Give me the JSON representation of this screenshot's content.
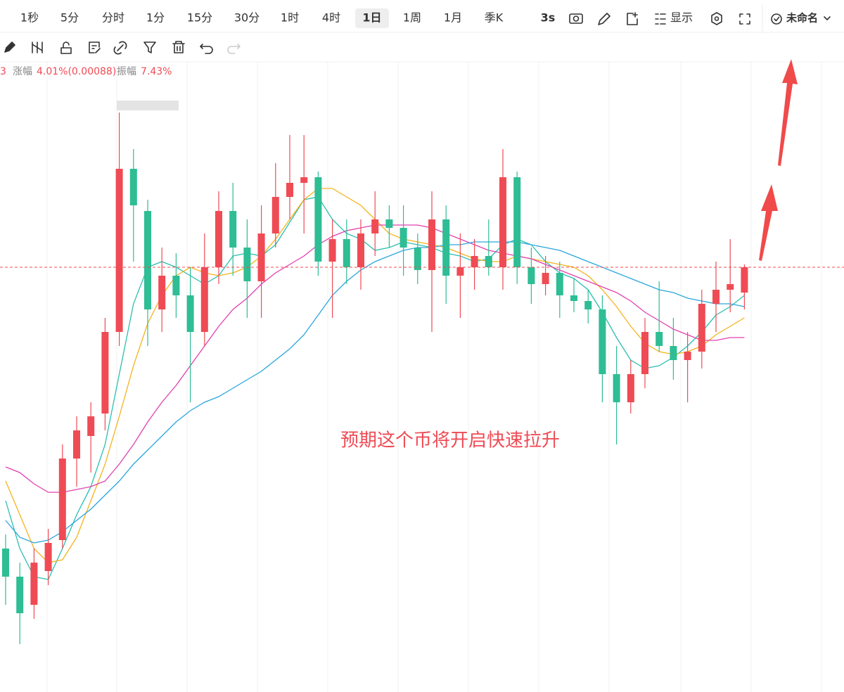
{
  "toolbar": {
    "intervals": [
      "1秒",
      "5分",
      "分时",
      "1分",
      "15分",
      "30分",
      "1时",
      "4时",
      "1日",
      "1周",
      "1月",
      "季K"
    ],
    "selected": 8,
    "refresh": "3s",
    "display": "显示",
    "layout_name": "未命名"
  },
  "info": {
    "prefix": "3",
    "change_label": "涨幅",
    "change": "4.01%(0.00088)",
    "amplitude_label": "振幅",
    "amplitude": "7.43%"
  },
  "chart_data": {
    "type": "candlestick",
    "annotation": "预期这个币将开启快速拉升",
    "up_color": "#ef4b55",
    "down_color": "#2ebd94",
    "ylim": [
      0.0077,
      0.0301
    ],
    "open": [
      0.0128,
      0.0118,
      0.0108,
      0.012,
      0.0131,
      0.016,
      0.0168,
      0.0176,
      0.0205,
      0.0263,
      0.0248,
      0.0213,
      0.0225,
      0.0218,
      0.0205,
      0.0228,
      0.0248,
      0.0235,
      0.0223,
      0.024,
      0.0253,
      0.0258,
      0.026,
      0.023,
      0.0238,
      0.0228,
      0.024,
      0.0245,
      0.0242,
      0.0235,
      0.0227,
      0.0245,
      0.0225,
      0.0228,
      0.0232,
      0.0228,
      0.026,
      0.0228,
      0.0222,
      0.0226,
      0.0218,
      0.0216,
      0.0213,
      0.019,
      0.018,
      0.019,
      0.0205,
      0.02,
      0.0195,
      0.0198,
      0.0215,
      0.022,
      0.0219
    ],
    "high": [
      0.0133,
      0.0123,
      0.0128,
      0.0135,
      0.0165,
      0.0175,
      0.018,
      0.021,
      0.0283,
      0.027,
      0.0252,
      0.0235,
      0.0233,
      0.0228,
      0.024,
      0.0255,
      0.0258,
      0.0245,
      0.025,
      0.0265,
      0.0275,
      0.0275,
      0.0262,
      0.0245,
      0.0245,
      0.0245,
      0.0255,
      0.025,
      0.025,
      0.024,
      0.0255,
      0.025,
      0.024,
      0.0238,
      0.0245,
      0.027,
      0.0262,
      0.0235,
      0.0232,
      0.023,
      0.0224,
      0.022,
      0.0218,
      0.02,
      0.0195,
      0.021,
      0.0223,
      0.021,
      0.0205,
      0.022,
      0.023,
      0.0238,
      0.0229
    ],
    "low": [
      0.0108,
      0.0094,
      0.0103,
      0.0115,
      0.0128,
      0.015,
      0.0155,
      0.017,
      0.02,
      0.023,
      0.02,
      0.0205,
      0.021,
      0.018,
      0.02,
      0.0222,
      0.0225,
      0.021,
      0.021,
      0.0235,
      0.0245,
      0.024,
      0.0225,
      0.021,
      0.0222,
      0.022,
      0.0232,
      0.0235,
      0.0225,
      0.0222,
      0.0205,
      0.0215,
      0.021,
      0.022,
      0.0225,
      0.022,
      0.0222,
      0.0215,
      0.0218,
      0.021,
      0.0212,
      0.0208,
      0.018,
      0.0165,
      0.0176,
      0.0185,
      0.0198,
      0.0188,
      0.018,
      0.0192,
      0.0205,
      0.0212,
      0.0213
    ],
    "close": [
      0.0118,
      0.0105,
      0.0123,
      0.013,
      0.016,
      0.017,
      0.0175,
      0.0205,
      0.0263,
      0.025,
      0.0213,
      0.0225,
      0.0218,
      0.0205,
      0.0228,
      0.0248,
      0.0235,
      0.0223,
      0.024,
      0.0253,
      0.0258,
      0.026,
      0.023,
      0.0238,
      0.0228,
      0.024,
      0.0245,
      0.0242,
      0.0235,
      0.0227,
      0.0245,
      0.0225,
      0.0228,
      0.0232,
      0.0228,
      0.026,
      0.0228,
      0.0222,
      0.0226,
      0.0218,
      0.0216,
      0.0213,
      0.019,
      0.018,
      0.019,
      0.0205,
      0.02,
      0.0195,
      0.0198,
      0.0215,
      0.022,
      0.0222,
      0.0228
    ],
    "moving_averages": [
      {
        "color": "#2bbfb0",
        "values": [
          0.0145,
          0.0128,
          0.0118,
          0.0117,
          0.0128,
          0.014,
          0.015,
          0.0165,
          0.019,
          0.0215,
          0.0228,
          0.023,
          0.0228,
          0.0225,
          0.0222,
          0.0225,
          0.0232,
          0.0233,
          0.0232,
          0.0236,
          0.0244,
          0.0252,
          0.0253,
          0.0245,
          0.024,
          0.0238,
          0.0234,
          0.0235,
          0.0237,
          0.0236,
          0.0235,
          0.0233,
          0.0232,
          0.023,
          0.0231,
          0.0236,
          0.0238,
          0.0236,
          0.023,
          0.0226,
          0.0224,
          0.022,
          0.0212,
          0.0203,
          0.0195,
          0.0192,
          0.0193,
          0.0196,
          0.02,
          0.0205,
          0.0211,
          0.0214,
          0.0218
        ]
      },
      {
        "color": "#f5b31c",
        "values": [
          0.0152,
          0.014,
          0.0128,
          0.0123,
          0.0124,
          0.0132,
          0.0145,
          0.0158,
          0.0175,
          0.0193,
          0.0208,
          0.0218,
          0.0225,
          0.0228,
          0.0226,
          0.0225,
          0.0226,
          0.0228,
          0.0232,
          0.0238,
          0.0245,
          0.0252,
          0.0256,
          0.0256,
          0.0253,
          0.025,
          0.0245,
          0.024,
          0.0238,
          0.0237,
          0.0236,
          0.0235,
          0.0233,
          0.0231,
          0.023,
          0.023,
          0.0232,
          0.0231,
          0.023,
          0.0229,
          0.0228,
          0.0225,
          0.022,
          0.0214,
          0.0207,
          0.0201,
          0.0198,
          0.0197,
          0.0198,
          0.02,
          0.0204,
          0.0207,
          0.021
        ]
      },
      {
        "color": "#e040b0",
        "values": [
          0.0157,
          0.0155,
          0.0151,
          0.0148,
          0.0148,
          0.0149,
          0.015,
          0.0152,
          0.0158,
          0.0165,
          0.0173,
          0.018,
          0.0186,
          0.0193,
          0.02,
          0.0207,
          0.0213,
          0.0217,
          0.0222,
          0.0226,
          0.0229,
          0.0232,
          0.0236,
          0.0239,
          0.0241,
          0.0242,
          0.0243,
          0.0243,
          0.0243,
          0.0243,
          0.0242,
          0.024,
          0.0238,
          0.0236,
          0.0234,
          0.0233,
          0.0232,
          0.0231,
          0.0229,
          0.0227,
          0.0225,
          0.0223,
          0.0221,
          0.0219,
          0.0216,
          0.0212,
          0.0209,
          0.0206,
          0.0204,
          0.0202,
          0.0202,
          0.0203,
          0.0203
        ]
      },
      {
        "color": "#2aa6dc",
        "values": [
          0.0138,
          0.0132,
          0.013,
          0.0131,
          0.0134,
          0.0138,
          0.0142,
          0.0147,
          0.0152,
          0.0158,
          0.0163,
          0.0168,
          0.0173,
          0.0177,
          0.018,
          0.0182,
          0.0185,
          0.0188,
          0.0191,
          0.0195,
          0.0199,
          0.0204,
          0.0211,
          0.0218,
          0.0223,
          0.0227,
          0.023,
          0.0232,
          0.0234,
          0.0235,
          0.0235,
          0.0236,
          0.0236,
          0.0237,
          0.0237,
          0.0237,
          0.0237,
          0.0236,
          0.0235,
          0.0234,
          0.0232,
          0.023,
          0.0228,
          0.0226,
          0.0224,
          0.0222,
          0.022,
          0.0219,
          0.0217,
          0.0216,
          0.0215,
          0.0215,
          0.0214
        ]
      }
    ]
  }
}
